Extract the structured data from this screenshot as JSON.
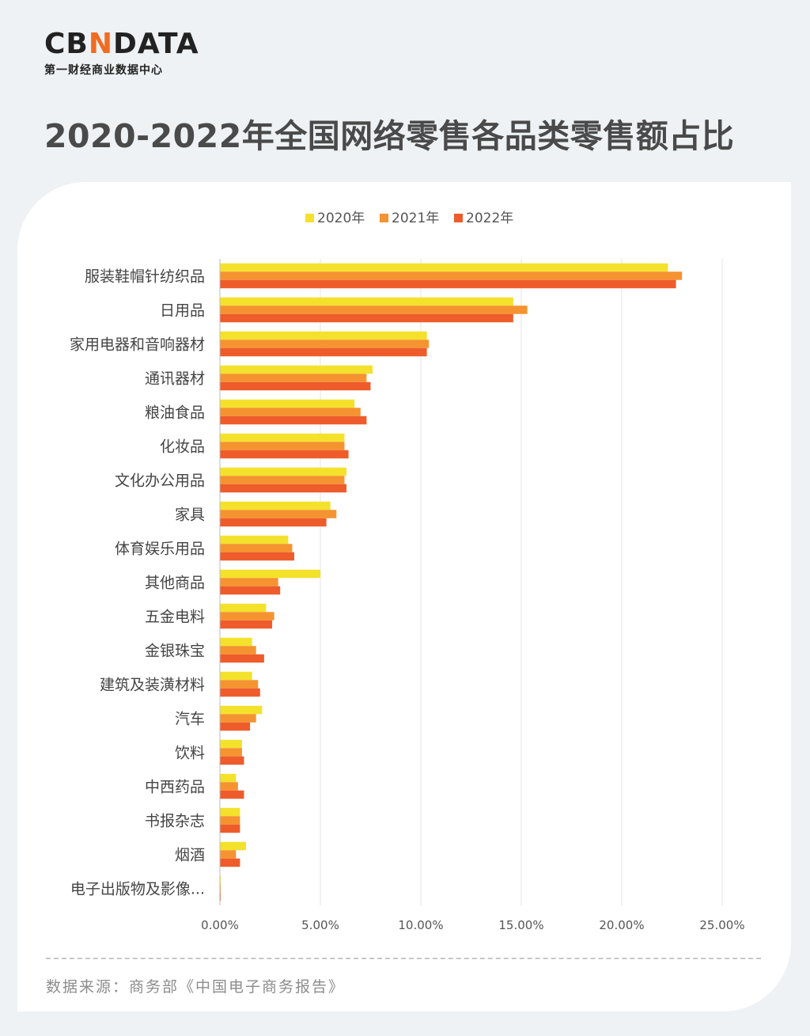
{
  "brand": {
    "logo_prefix": "CB",
    "logo_accent": "N",
    "logo_suffix": "DATA",
    "tagline": "第一财经商业数据中心"
  },
  "title": "2020-2022年全国网络零售各品类零售额占比",
  "source": "数据来源：商务部《中国电子商务报告》",
  "colors": {
    "accent": "#f26b21",
    "series_2020": "#f4e12c",
    "series_2021": "#f59331",
    "series_2022": "#ee5c2b",
    "grid": "#e3e3e3"
  },
  "chart_data": {
    "type": "bar",
    "orientation": "horizontal",
    "categories": [
      "服装鞋帽针纺织品",
      "日用品",
      "家用电器和音响器材",
      "通讯器材",
      "粮油食品",
      "化妆品",
      "文化办公用品",
      "家具",
      "体育娱乐用品",
      "其他商品",
      "五金电料",
      "金银珠宝",
      "建筑及装潢材料",
      "汽车",
      "饮料",
      "中西药品",
      "书报杂志",
      "烟酒",
      "电子出版物及影像..."
    ],
    "series": [
      {
        "name": "2020年",
        "values": [
          22.3,
          14.6,
          10.3,
          7.6,
          6.7,
          6.2,
          6.3,
          5.5,
          3.4,
          5.0,
          2.3,
          1.6,
          1.6,
          2.1,
          1.1,
          0.8,
          1.0,
          1.3,
          0.04
        ]
      },
      {
        "name": "2021年",
        "values": [
          23.0,
          15.3,
          10.4,
          7.3,
          7.0,
          6.2,
          6.2,
          5.8,
          3.6,
          2.9,
          2.7,
          1.8,
          1.9,
          1.8,
          1.1,
          0.9,
          1.0,
          0.8,
          0.04
        ]
      },
      {
        "name": "2022年",
        "values": [
          22.7,
          14.6,
          10.3,
          7.5,
          7.3,
          6.4,
          6.3,
          5.3,
          3.7,
          3.0,
          2.6,
          2.2,
          2.0,
          1.5,
          1.2,
          1.2,
          1.0,
          1.0,
          0.04
        ]
      }
    ],
    "xticks": [
      "0.00%",
      "5.00%",
      "10.00%",
      "15.00%",
      "20.00%",
      "25.00%"
    ],
    "xlim": [
      0,
      25
    ],
    "grid": true,
    "legend_position": "top-center"
  }
}
